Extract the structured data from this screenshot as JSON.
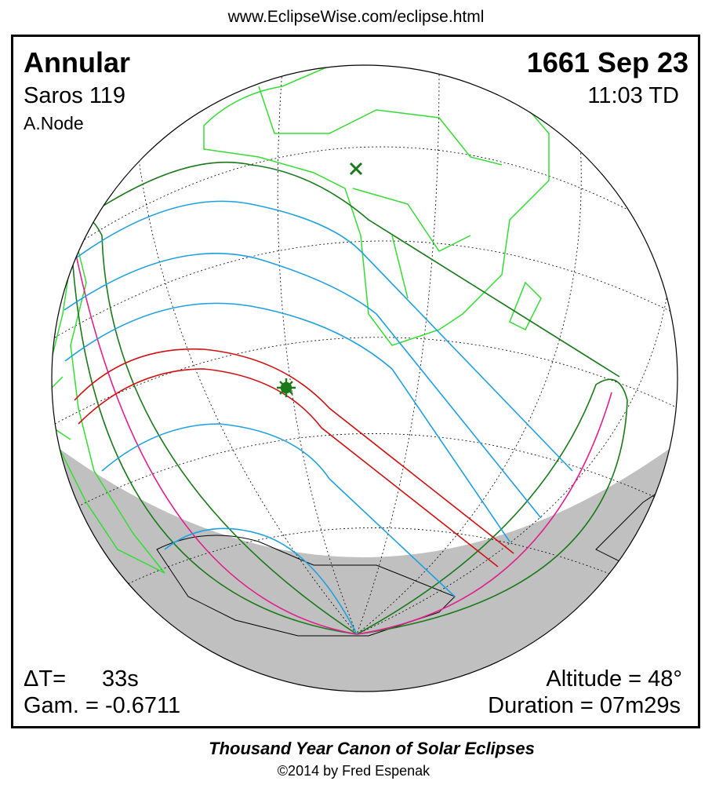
{
  "header": {
    "url": "www.EclipseWise.com/eclipse.html"
  },
  "eclipse": {
    "type": "Annular",
    "date": "1661 Sep 23",
    "saros": "Saros 119",
    "time": "11:03 TD",
    "node": "A.Node",
    "delta_t_label": "ΔT=",
    "delta_t": "33s",
    "gamma": "Gam. = -0.6711",
    "altitude": "Altitude = 48°",
    "duration": "Duration = 07m29s"
  },
  "footer": {
    "title": "Thousand Year Canon of Solar Eclipses",
    "copyright": "©2014 by Fred Espenak"
  }
}
